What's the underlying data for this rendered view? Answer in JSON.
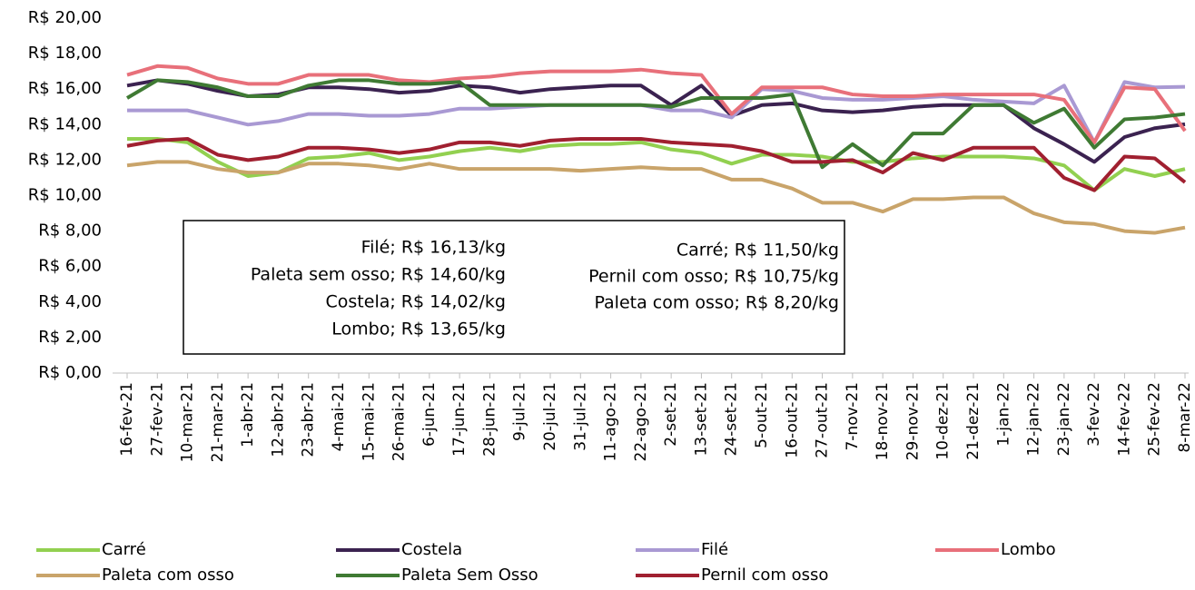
{
  "chart_data": {
    "type": "line",
    "categories": [
      "16-fev-21",
      "27-fev-21",
      "10-mar-21",
      "21-mar-21",
      "1-abr-21",
      "12-abr-21",
      "23-abr-21",
      "4-mai-21",
      "15-mai-21",
      "26-mai-21",
      "6-jun-21",
      "17-jun-21",
      "28-jun-21",
      "9-jul-21",
      "20-jul-21",
      "31-jul-21",
      "11-ago-21",
      "22-ago-21",
      "2-set-21",
      "13-set-21",
      "24-set-21",
      "5-out-21",
      "16-out-21",
      "27-out-21",
      "7-nov-21",
      "18-nov-21",
      "29-nov-21",
      "10-dez-21",
      "21-dez-21",
      "1-jan-22",
      "12-jan-22",
      "23-jan-22",
      "3-fev-22",
      "14-fev-22",
      "25-fev-22",
      "8-mar-22"
    ],
    "ylim": [
      0,
      20
    ],
    "yticks": [
      {
        "value": 0,
        "label": "R$ 0,00"
      },
      {
        "value": 2,
        "label": "R$ 2,00"
      },
      {
        "value": 4,
        "label": "R$ 4,00"
      },
      {
        "value": 6,
        "label": "R$ 6,00"
      },
      {
        "value": 8,
        "label": "R$ 8,00"
      },
      {
        "value": 10,
        "label": "R$ 10,00"
      },
      {
        "value": 12,
        "label": "R$ 12,00"
      },
      {
        "value": 14,
        "label": "R$ 14,00"
      },
      {
        "value": 16,
        "label": "R$ 16,00"
      },
      {
        "value": 18,
        "label": "R$ 18,00"
      },
      {
        "value": 20,
        "label": "R$ 20,00"
      }
    ],
    "grid": false,
    "legend": "bottom",
    "series": [
      {
        "name": "Carré",
        "color": "#92d050",
        "values": [
          13.2,
          13.2,
          13.0,
          11.9,
          11.1,
          11.3,
          12.1,
          12.2,
          12.4,
          12.0,
          12.2,
          12.5,
          12.7,
          12.5,
          12.8,
          12.9,
          12.9,
          13.0,
          12.6,
          12.4,
          11.8,
          12.3,
          12.3,
          12.2,
          11.9,
          11.9,
          12.1,
          12.2,
          12.2,
          12.2,
          12.1,
          11.7,
          10.3,
          11.5,
          11.1,
          11.5
        ]
      },
      {
        "name": "Costela",
        "color": "#3b2250",
        "values": [
          16.2,
          16.5,
          16.3,
          15.9,
          15.6,
          15.7,
          16.1,
          16.1,
          16.0,
          15.8,
          15.9,
          16.2,
          16.1,
          15.8,
          16.0,
          16.1,
          16.2,
          16.2,
          15.1,
          16.2,
          14.5,
          15.1,
          15.2,
          14.8,
          14.7,
          14.8,
          15.0,
          15.1,
          15.1,
          15.1,
          13.8,
          12.9,
          11.9,
          13.3,
          13.8,
          14.02
        ]
      },
      {
        "name": "Filé",
        "color": "#a999d3",
        "values": [
          14.8,
          14.8,
          14.8,
          14.4,
          14.0,
          14.2,
          14.6,
          14.6,
          14.5,
          14.5,
          14.6,
          14.9,
          14.9,
          15.0,
          15.1,
          15.1,
          15.1,
          15.1,
          14.8,
          14.8,
          14.4,
          16.0,
          15.9,
          15.5,
          15.4,
          15.4,
          15.5,
          15.6,
          15.4,
          15.3,
          15.2,
          16.2,
          13.0,
          16.4,
          16.1,
          16.13
        ]
      },
      {
        "name": "Lombo",
        "color": "#e8707a",
        "values": [
          16.8,
          17.3,
          17.2,
          16.6,
          16.3,
          16.3,
          16.8,
          16.8,
          16.8,
          16.5,
          16.4,
          16.6,
          16.7,
          16.9,
          17.0,
          17.0,
          17.0,
          17.1,
          16.9,
          16.8,
          14.6,
          16.1,
          16.1,
          16.1,
          15.7,
          15.6,
          15.6,
          15.7,
          15.7,
          15.7,
          15.7,
          15.4,
          13.0,
          16.1,
          16.0,
          13.65
        ]
      },
      {
        "name": "Paleta com osso",
        "color": "#c9a46a",
        "values": [
          11.7,
          11.9,
          11.9,
          11.5,
          11.3,
          11.3,
          11.8,
          11.8,
          11.7,
          11.5,
          11.8,
          11.5,
          11.5,
          11.5,
          11.5,
          11.4,
          11.5,
          11.6,
          11.5,
          11.5,
          10.9,
          10.9,
          10.4,
          9.6,
          9.6,
          9.1,
          9.8,
          9.8,
          9.9,
          9.9,
          9.0,
          8.5,
          8.4,
          8.0,
          7.9,
          8.2
        ]
      },
      {
        "name": "Paleta Sem Osso",
        "color": "#3f7a33",
        "values": [
          15.5,
          16.5,
          16.4,
          16.1,
          15.6,
          15.6,
          16.2,
          16.5,
          16.5,
          16.3,
          16.3,
          16.4,
          15.1,
          15.1,
          15.1,
          15.1,
          15.1,
          15.1,
          15.0,
          15.5,
          15.5,
          15.5,
          15.7,
          11.6,
          12.9,
          11.7,
          13.5,
          13.5,
          15.1,
          15.1,
          14.1,
          14.9,
          12.7,
          14.3,
          14.4,
          14.6
        ]
      },
      {
        "name": "Pernil com osso",
        "color": "#a02030",
        "values": [
          12.8,
          13.1,
          13.2,
          12.3,
          12.0,
          12.2,
          12.7,
          12.7,
          12.6,
          12.4,
          12.6,
          13.0,
          13.0,
          12.8,
          13.1,
          13.2,
          13.2,
          13.2,
          13.0,
          12.9,
          12.8,
          12.5,
          11.9,
          11.9,
          12.0,
          11.3,
          12.4,
          12.0,
          12.7,
          12.7,
          12.7,
          11.0,
          10.3,
          12.2,
          12.1,
          10.75
        ]
      }
    ],
    "annotations": {
      "left": [
        "Filé; R$ 16,13/kg",
        "Paleta sem osso; R$ 14,60/kg",
        "Costela; R$ 14,02/kg",
        "Lombo; R$ 13,65/kg"
      ],
      "right": [
        "Carré; R$ 11,50/kg",
        "Pernil com osso; R$ 10,75/kg",
        "Paleta com osso; R$ 8,20/kg"
      ]
    }
  }
}
